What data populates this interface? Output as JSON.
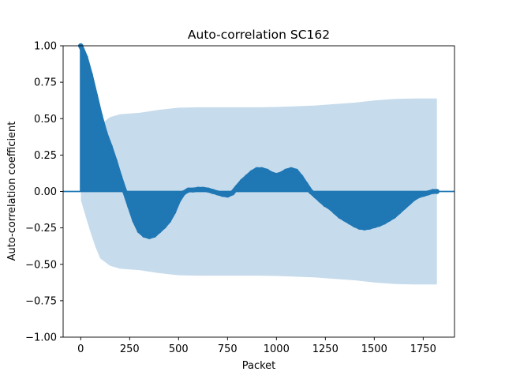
{
  "chart_data": {
    "type": "stem",
    "title": "Auto-correlation SC162",
    "xlabel": "Packet",
    "ylabel": "Auto-correlation coefficient",
    "xlim": [
      -90,
      1910
    ],
    "ylim": [
      -1.0,
      1.0
    ],
    "x_ticks": [
      0,
      250,
      500,
      750,
      1000,
      1250,
      1500,
      1750
    ],
    "x_tick_labels": [
      "0",
      "250",
      "500",
      "750",
      "1000",
      "1250",
      "1500",
      "1750"
    ],
    "y_ticks": [
      -1.0,
      -0.75,
      -0.5,
      -0.25,
      0.0,
      0.25,
      0.5,
      0.75,
      1.0
    ],
    "y_tick_labels": [
      "−1.00",
      "−0.75",
      "−0.50",
      "−0.25",
      "0.00",
      "0.25",
      "0.50",
      "0.75",
      "1.00"
    ],
    "baseline": 0.0,
    "series": [
      {
        "x": [
          0,
          25,
          50,
          75,
          100,
          125,
          150,
          175,
          200,
          225,
          250,
          275,
          300,
          325,
          350,
          375,
          400,
          425,
          450,
          475,
          500,
          525,
          550,
          575,
          600,
          625,
          650,
          675,
          700,
          725,
          750,
          775,
          800,
          825,
          850,
          875,
          900,
          925,
          950,
          975,
          1000,
          1025,
          1050,
          1075,
          1100,
          1125,
          1150,
          1175,
          1200,
          1225,
          1250,
          1275,
          1300,
          1325,
          1350,
          1375,
          1400,
          1425,
          1450,
          1475,
          1500,
          1525,
          1550,
          1575,
          1600,
          1625,
          1650,
          1675,
          1700,
          1725,
          1750,
          1775,
          1800,
          1820
        ],
        "values": [
          1.0,
          0.92,
          0.8,
          0.66,
          0.52,
          0.4,
          0.31,
          0.21,
          0.1,
          0.0,
          -0.1,
          -0.2,
          -0.27,
          -0.3,
          -0.31,
          -0.3,
          -0.27,
          -0.24,
          -0.2,
          -0.14,
          -0.06,
          -0.01,
          0.01,
          0.01,
          0.015,
          0.015,
          0.01,
          0.0,
          -0.01,
          -0.02,
          -0.025,
          -0.01,
          0.03,
          0.07,
          0.1,
          0.13,
          0.15,
          0.15,
          0.14,
          0.12,
          0.11,
          0.12,
          0.14,
          0.15,
          0.14,
          0.1,
          0.05,
          0.0,
          -0.03,
          -0.06,
          -0.09,
          -0.11,
          -0.14,
          -0.17,
          -0.19,
          -0.21,
          -0.23,
          -0.245,
          -0.25,
          -0.245,
          -0.235,
          -0.225,
          -0.21,
          -0.19,
          -0.17,
          -0.14,
          -0.11,
          -0.08,
          -0.05,
          -0.03,
          -0.02,
          -0.01,
          0.0,
          0.0
        ]
      }
    ],
    "confidence_band": {
      "x": [
        1,
        25,
        50,
        75,
        100,
        150,
        200,
        250,
        300,
        400,
        500,
        600,
        700,
        800,
        900,
        1000,
        1100,
        1200,
        1300,
        1400,
        1500,
        1600,
        1700,
        1820
      ],
      "upper": [
        0.06,
        0.17,
        0.28,
        0.38,
        0.46,
        0.51,
        0.53,
        0.535,
        0.54,
        0.56,
        0.575,
        0.578,
        0.578,
        0.578,
        0.578,
        0.58,
        0.585,
        0.59,
        0.6,
        0.61,
        0.625,
        0.635,
        0.638,
        0.638
      ]
    },
    "colors": {
      "stem": "#1f77b4",
      "band": "#c6dbec",
      "axis": "#000000"
    }
  }
}
